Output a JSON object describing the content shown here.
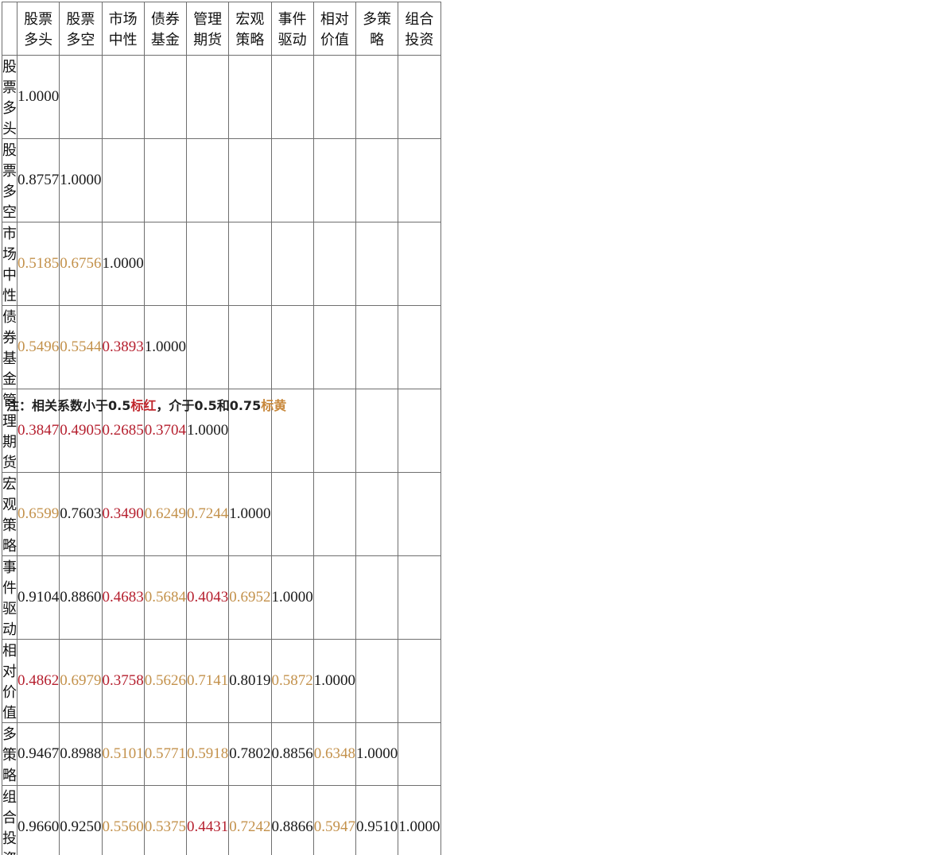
{
  "chart_data": {
    "type": "table",
    "columns": [
      "股票多头",
      "股票多空",
      "市场中性",
      "债券基金",
      "管理期货",
      "宏观策略",
      "事件驱动",
      "相对价值",
      "多策略",
      "组合投资"
    ],
    "rows": [
      {
        "label": "股票多头",
        "values": [
          "1.0000"
        ]
      },
      {
        "label": "股票多空",
        "values": [
          "0.8757",
          "1.0000"
        ]
      },
      {
        "label": "市场中性",
        "values": [
          "0.5185",
          "0.6756",
          "1.0000"
        ]
      },
      {
        "label": "债券基金",
        "values": [
          "0.5496",
          "0.5544",
          "0.3893",
          "1.0000"
        ]
      },
      {
        "label": "管理期货",
        "values": [
          "0.3847",
          "0.4905",
          "0.2685",
          "0.3704",
          "1.0000"
        ]
      },
      {
        "label": "宏观策略",
        "values": [
          "0.6599",
          "0.7603",
          "0.3490",
          "0.6249",
          "0.7244",
          "1.0000"
        ]
      },
      {
        "label": "事件驱动",
        "values": [
          "0.9104",
          "0.8860",
          "0.4683",
          "0.5684",
          "0.4043",
          "0.6952",
          "1.0000"
        ]
      },
      {
        "label": "相对价值",
        "values": [
          "0.4862",
          "0.6979",
          "0.3758",
          "0.5626",
          "0.7141",
          "0.8019",
          "0.5872",
          "1.0000"
        ]
      },
      {
        "label": "多策略",
        "values": [
          "0.9467",
          "0.8988",
          "0.5101",
          "0.5771",
          "0.5918",
          "0.7802",
          "0.8856",
          "0.6348",
          "1.0000"
        ]
      },
      {
        "label": "组合投资",
        "values": [
          "0.9660",
          "0.9250",
          "0.5560",
          "0.5375",
          "0.4431",
          "0.7242",
          "0.8866",
          "0.5947",
          "0.9510",
          "1.0000"
        ]
      }
    ],
    "color_rules": {
      "red_below": 0.5,
      "yellow_below": 0.75
    }
  },
  "colors": {
    "red": "#b51f2e",
    "yellow": "#c3914b",
    "black": "#1a1a1a"
  },
  "note": {
    "prefix": "注：相关系数小于0.5",
    "red_text": "标红",
    "middle": "，介于0.5和0.75",
    "yellow_text": "标黄"
  }
}
